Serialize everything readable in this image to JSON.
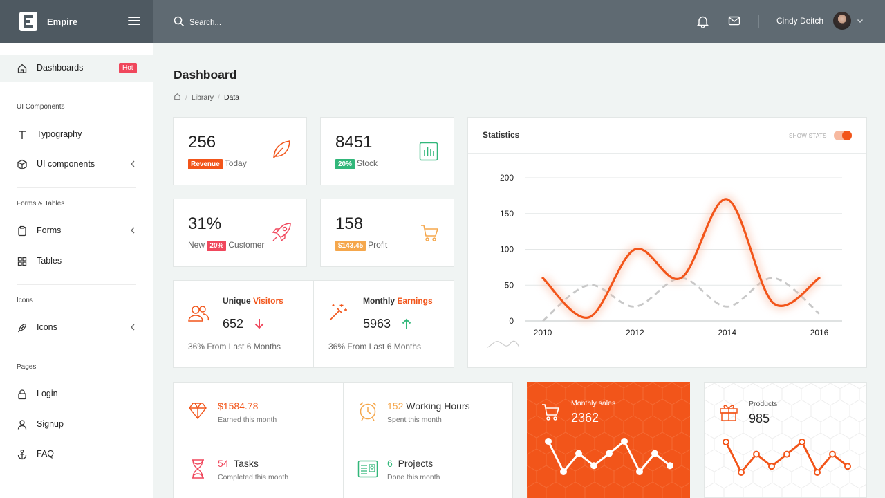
{
  "brand": {
    "name": "Empire"
  },
  "search": {
    "placeholder": "Search..."
  },
  "user": {
    "name": "Cindy Deitch"
  },
  "sidebar": {
    "dashboards": {
      "label": "Dashboards",
      "badge": "Hot"
    },
    "sections": [
      {
        "heading": "UI Components",
        "items": [
          {
            "label": "Typography"
          },
          {
            "label": "UI components"
          }
        ]
      },
      {
        "heading": "Forms & Tables",
        "items": [
          {
            "label": "Forms"
          },
          {
            "label": "Tables"
          }
        ]
      },
      {
        "heading": "Icons",
        "items": [
          {
            "label": "Icons"
          }
        ]
      },
      {
        "heading": "Pages",
        "items": [
          {
            "label": "Login"
          },
          {
            "label": "Signup"
          },
          {
            "label": "FAQ"
          }
        ]
      }
    ]
  },
  "page": {
    "title": "Dashboard",
    "breadcrumb": [
      "Library",
      "Data"
    ]
  },
  "stats": [
    {
      "value": "256",
      "badge": "Revenue",
      "badge_color": "#f2551a",
      "label": "Today",
      "prefix": ""
    },
    {
      "value": "8451",
      "badge": "20%",
      "badge_color": "#32b77a",
      "label": "Stock",
      "prefix": ""
    },
    {
      "value": "31%",
      "badge": "20%",
      "badge_color": "#f0475c",
      "label": "Customer",
      "prefix": "New"
    },
    {
      "value": "158",
      "badge": "$143.45",
      "badge_color": "#f5a74c",
      "label": "Profit",
      "prefix": ""
    }
  ],
  "visitors": {
    "title": "Unique",
    "title_accent": "Visitors",
    "value": "652",
    "footer": "36% From Last 6 Months"
  },
  "earnings": {
    "title": "Monthly",
    "title_accent": "Earnings",
    "value": "5963",
    "footer": "36% From Last 6 Months"
  },
  "statistics": {
    "title": "Statistics",
    "toggle_label": "SHOW STATS",
    "toggle_on": true
  },
  "chart_data": {
    "type": "line",
    "x_ticks": [
      "2010",
      "2012",
      "2014",
      "2016"
    ],
    "y_ticks": [
      "200",
      "150",
      "100",
      "50",
      "0"
    ],
    "ylim": [
      0,
      200
    ],
    "xlim": [
      2010,
      2016
    ],
    "grid": true,
    "colors": [
      "#f2551a",
      "#c8c8c8"
    ],
    "series": [
      {
        "x": [
          2010,
          2011,
          2012,
          2013,
          2014,
          2015,
          2016
        ],
        "values": [
          60,
          5,
          100,
          60,
          170,
          25,
          60
        ]
      },
      {
        "x": [
          2010,
          2011,
          2012,
          2013,
          2014,
          2015,
          2016
        ],
        "values": [
          0,
          50,
          20,
          60,
          20,
          60,
          10
        ]
      }
    ]
  },
  "summary": [
    {
      "value": "$1584.78",
      "text": "",
      "subtitle": "Earned this month",
      "color": "#f2551a"
    },
    {
      "value": "152",
      "text": "Working Hours",
      "subtitle": "Spent this month",
      "color": "#f5a74c"
    },
    {
      "value": "54",
      "text": "Tasks",
      "subtitle": "Completed this month",
      "color": "#f0475c"
    },
    {
      "value": "6",
      "text": "Projects",
      "subtitle": "Done this month",
      "color": "#32b77a"
    }
  ],
  "monthly_sales": {
    "label": "Monthly sales",
    "value": "2362",
    "spark": [
      6,
      1,
      4,
      2,
      4,
      6,
      1,
      4,
      2
    ]
  },
  "products": {
    "label": "Products",
    "value": "985",
    "spark": [
      6,
      1,
      4,
      2,
      4,
      6,
      1,
      4,
      2
    ]
  }
}
